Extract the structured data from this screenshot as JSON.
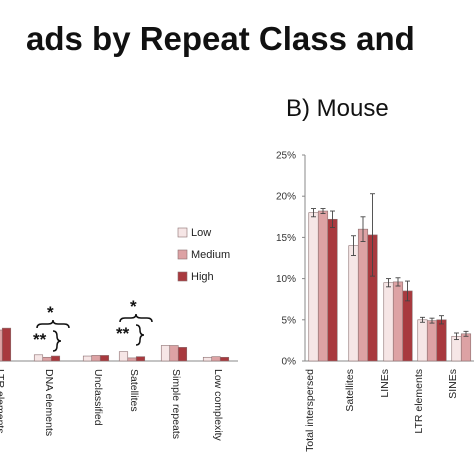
{
  "header": {
    "title_fragment": "ads by Repeat Class and",
    "mouse_panel_title": "B) Mouse"
  },
  "colors": {
    "low": "#f6e6e6",
    "medium": "#dda2a4",
    "high": "#a8393e",
    "bar_stroke": "#8c6f70",
    "axis": "#888888",
    "error": "#444444"
  },
  "chart_data": [
    {
      "panel": "left (partially visible)",
      "type": "bar",
      "categories": [
        "LTR elements",
        "DNA elements",
        "Unclassified",
        "Satellites",
        "Simple repeats",
        "Low complexity"
      ],
      "series": [
        {
          "name": "Low",
          "values": [
            null,
            1.0,
            0.8,
            1.5,
            2.5,
            0.6
          ]
        },
        {
          "name": "Medium",
          "values": [
            5.0,
            0.6,
            0.9,
            0.5,
            2.5,
            0.7
          ]
        },
        {
          "name": "High",
          "values": [
            5.3,
            0.8,
            0.9,
            0.7,
            2.2,
            0.6
          ]
        }
      ],
      "legend": {
        "items": [
          "Low",
          "Medium",
          "High"
        ],
        "placement": "top-right"
      },
      "annotations": {
        "dna": {
          "inner": "**",
          "outer": "*"
        },
        "satellites": {
          "inner": "**",
          "outer": "*"
        }
      }
    },
    {
      "panel": "B) Mouse",
      "type": "bar",
      "categories": [
        "Total interspersed",
        "Satellites",
        "LINEs",
        "LTR elements",
        "SINEs"
      ],
      "series": [
        {
          "name": "Low",
          "values": [
            18.0,
            14.0,
            9.5,
            5.0,
            3.0
          ],
          "errors": [
            0.5,
            1.2,
            0.5,
            0.3,
            0.4
          ]
        },
        {
          "name": "Medium",
          "values": [
            18.2,
            16.0,
            9.6,
            4.9,
            3.3
          ],
          "errors": [
            0.3,
            1.5,
            0.5,
            0.3,
            0.3
          ]
        },
        {
          "name": "High",
          "values": [
            17.2,
            15.3,
            8.5,
            5.0,
            null
          ],
          "errors": [
            1.0,
            5.0,
            1.2,
            0.5,
            null
          ]
        }
      ],
      "yticks": [
        "0%",
        "5%",
        "10%",
        "15%",
        "20%",
        "25%"
      ],
      "ylim": [
        0,
        25
      ],
      "grid": false
    }
  ]
}
